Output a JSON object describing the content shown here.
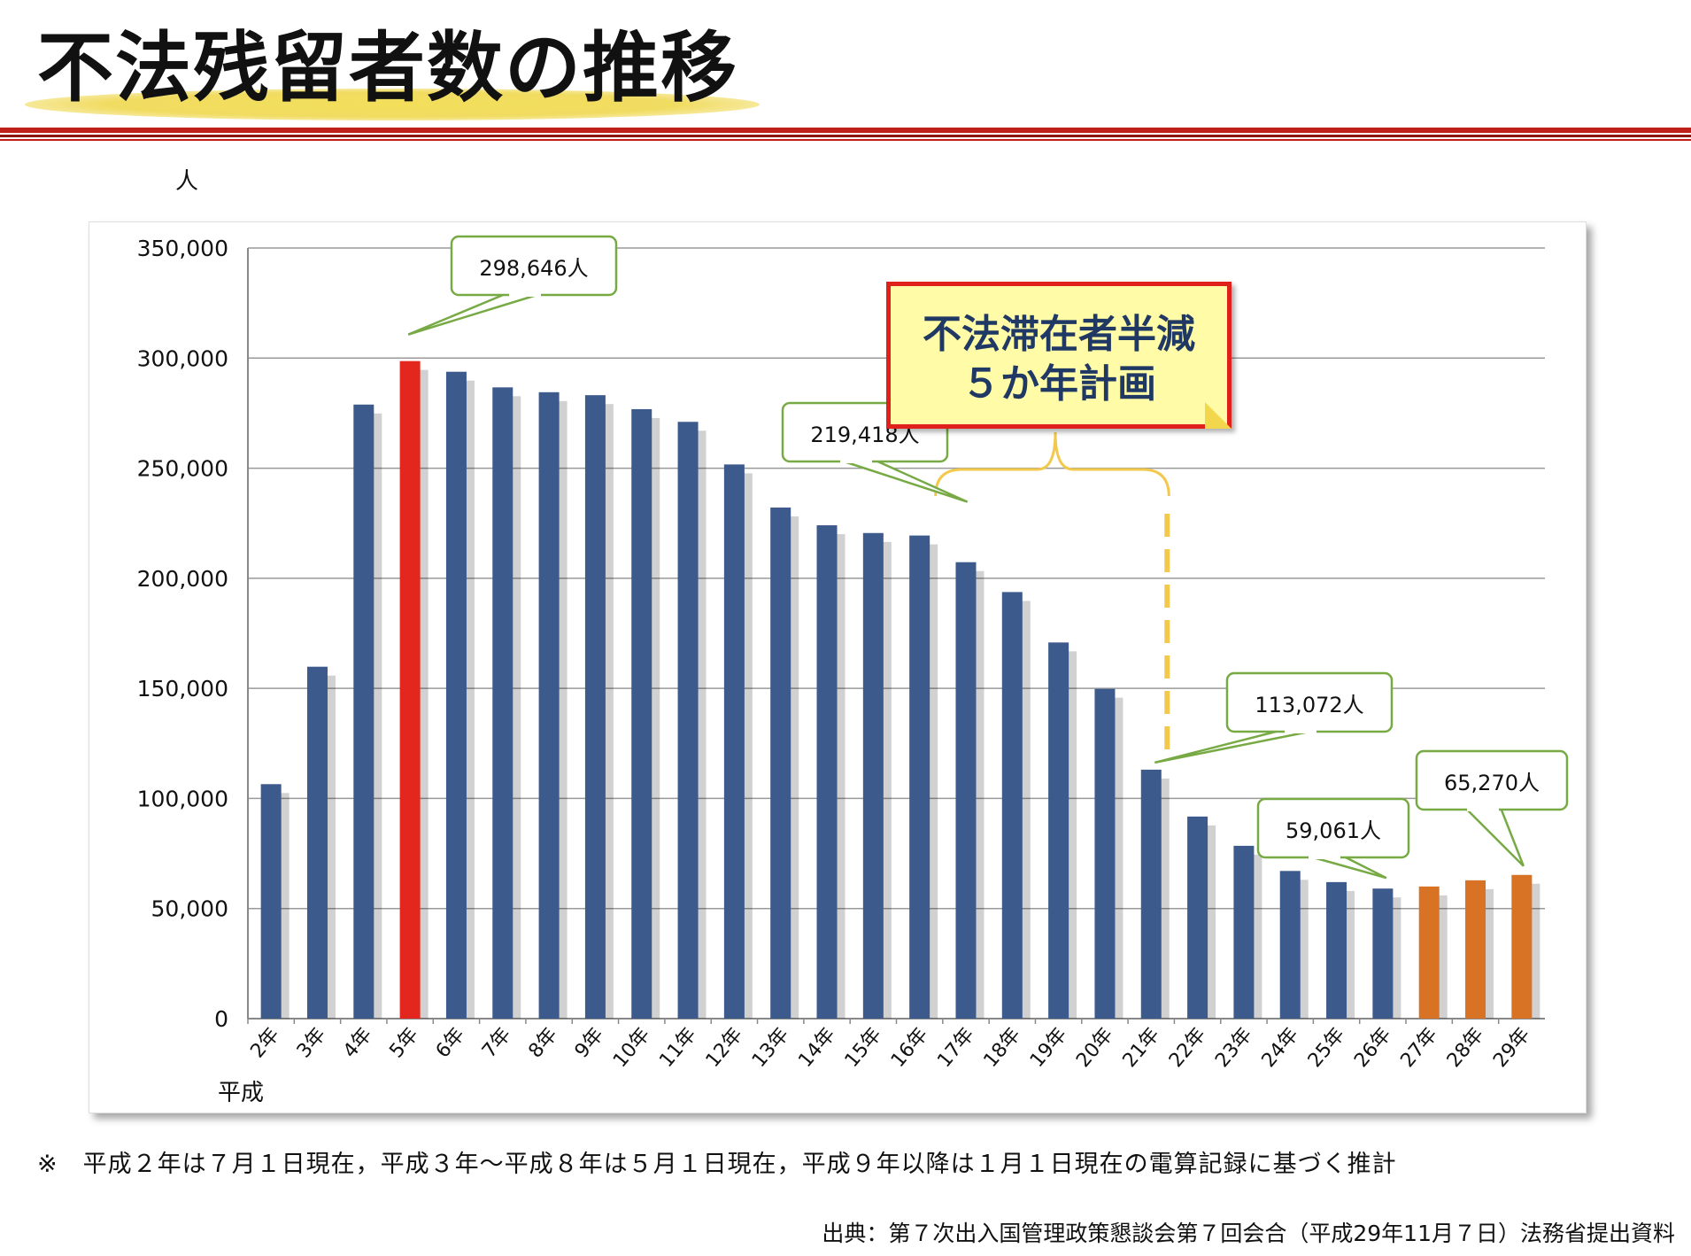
{
  "page": {
    "title": "不法残留者数の推移",
    "unit": "人",
    "note": "※　平成２年は７月１日現在，平成３年～平成８年は５月１日現在，平成９年以降は１月１日現在の電算記録に基づく推計",
    "source": "出典：第７次出入国管理政策懇談会第７回会合（平成29年11月７日）法務省提出資料",
    "plan_line1": "不法滞在者半減",
    "plan_line2": "５か年計画"
  },
  "colors": {
    "bar_default": "#3c5a8c",
    "bar_peak": "#e3261e",
    "bar_recent": "#d87326",
    "title_rule": "#c0201a",
    "callout_border": "#77aa44",
    "brace": "#f2c94c"
  },
  "chart_data": {
    "type": "bar",
    "ylim": [
      0,
      350000
    ],
    "yticks": [
      0,
      50000,
      100000,
      150000,
      200000,
      250000,
      300000,
      350000
    ],
    "ytick_labels": [
      "0",
      "50,000",
      "100,000",
      "150,000",
      "200,000",
      "250,000",
      "300,000",
      "350,000"
    ],
    "xlabel": "平成",
    "grid": true,
    "categories": [
      "2年",
      "3年",
      "4年",
      "5年",
      "6年",
      "7年",
      "8年",
      "9年",
      "10年",
      "11年",
      "12年",
      "13年",
      "14年",
      "15年",
      "16年",
      "17年",
      "18年",
      "19年",
      "20年",
      "21年",
      "22年",
      "23年",
      "24年",
      "25年",
      "26年",
      "27年",
      "28年",
      "29年"
    ],
    "values": [
      106497,
      159828,
      278892,
      298646,
      293800,
      286704,
      284500,
      283157,
      276810,
      271048,
      251697,
      232121,
      224067,
      220552,
      219418,
      207299,
      193745,
      170839,
      149785,
      113072,
      91778,
      78488,
      67065,
      62009,
      59061,
      60007,
      62818,
      65270
    ],
    "bar_colors": [
      "default",
      "default",
      "default",
      "peak",
      "default",
      "default",
      "default",
      "default",
      "default",
      "default",
      "default",
      "default",
      "default",
      "default",
      "default",
      "default",
      "default",
      "default",
      "default",
      "default",
      "default",
      "default",
      "default",
      "default",
      "default",
      "recent",
      "recent",
      "recent"
    ],
    "annotations": [
      {
        "label": "298,646人",
        "category": "5年"
      },
      {
        "label": "219,418人",
        "category": "16年"
      },
      {
        "label": "113,072人",
        "category": "21年"
      },
      {
        "label": "59,061人",
        "category": "26年"
      },
      {
        "label": "65,270人",
        "category": "29年"
      }
    ]
  }
}
